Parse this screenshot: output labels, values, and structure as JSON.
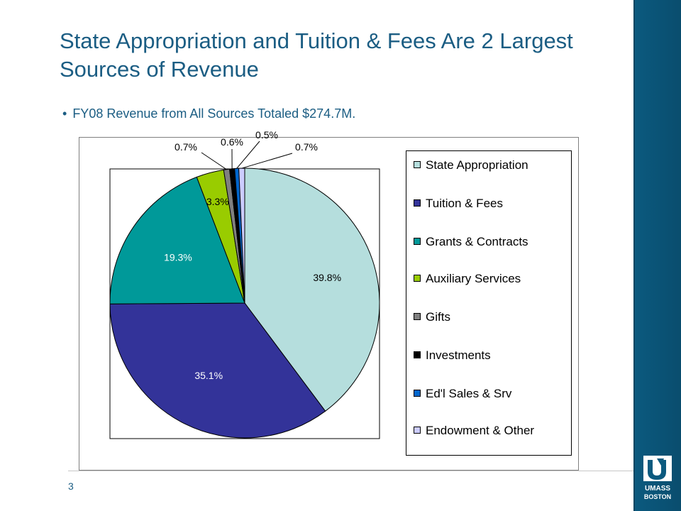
{
  "slide": {
    "title": "State Appropriation and Tuition & Fees Are 2 Largest Sources of Revenue",
    "bullet": "FY08 Revenue from All Sources Totaled $274.7M.",
    "page_number": "3",
    "logo_text_line1": "UMASS",
    "logo_text_line2": "BOSTON",
    "accent_color": "#0b5a7f",
    "title_color": "#1b5d83"
  },
  "chart_data": {
    "type": "pie",
    "title": "",
    "categories": [
      "State Appropriation",
      "Tuition & Fees",
      "Grants & Contracts",
      "Auxiliary Services",
      "Gifts",
      "Investments",
      "Ed'l Sales & Srv",
      "Endowment & Other"
    ],
    "values": [
      39.8,
      35.1,
      19.3,
      3.3,
      0.7,
      0.6,
      0.5,
      0.7
    ],
    "labels": [
      "39.8%",
      "35.1%",
      "19.3%",
      "3.3%",
      "0.7%",
      "0.6%",
      "0.5%",
      "0.7%"
    ],
    "colors": [
      "#b5dedd",
      "#333399",
      "#009999",
      "#99cc00",
      "#808080",
      "#000000",
      "#0066cc",
      "#ccccff"
    ],
    "legend_position": "right"
  }
}
